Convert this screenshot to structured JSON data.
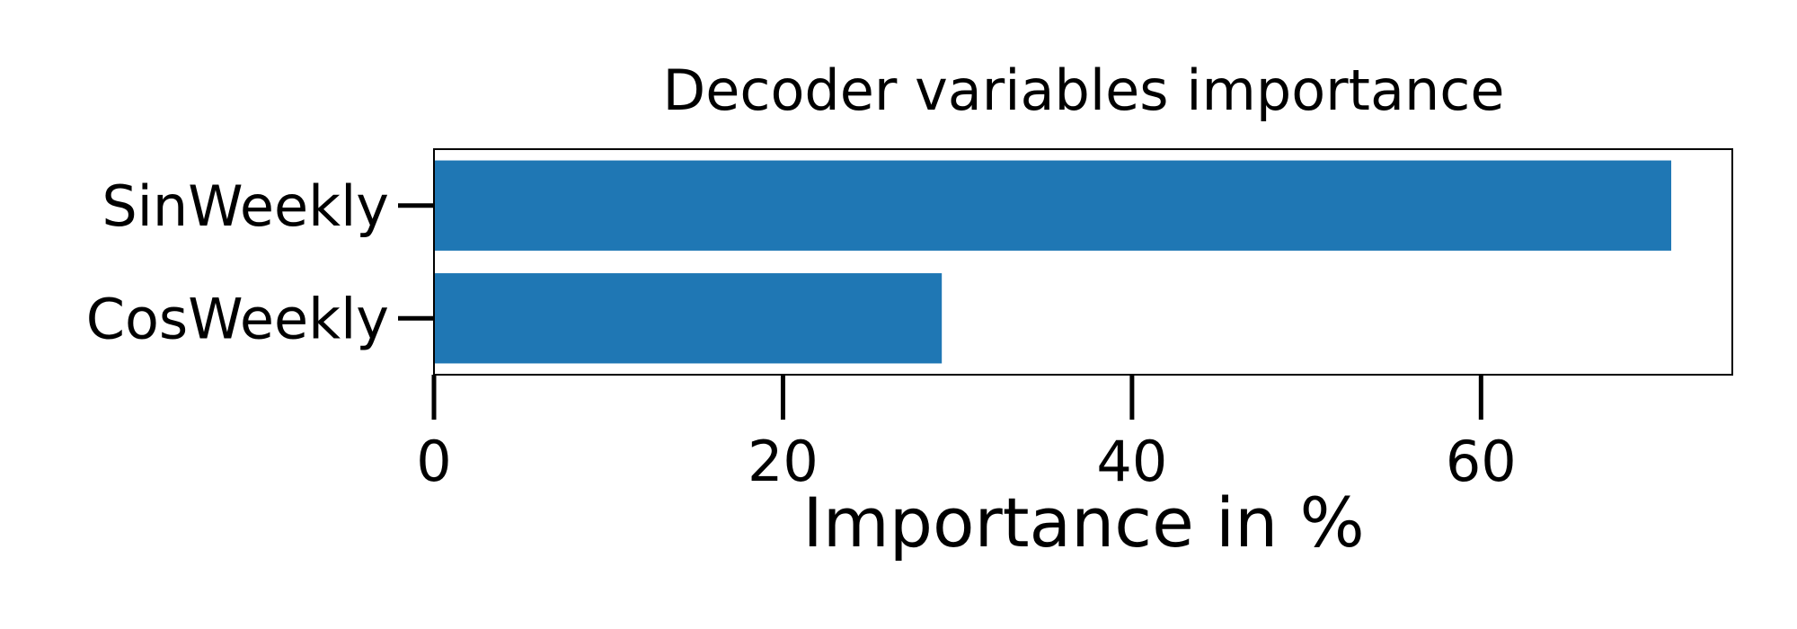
{
  "chart_data": {
    "type": "bar",
    "orientation": "horizontal",
    "title": "Decoder variables importance",
    "xlabel": "Importance in %",
    "ylabel": "",
    "categories": [
      "SinWeekly",
      "CosWeekly"
    ],
    "values": [
      70.9,
      29.1
    ],
    "xlim": [
      0,
      74.4
    ],
    "xticks": [
      "0",
      "20",
      "40",
      "60"
    ],
    "grid": false,
    "legend": "none",
    "bar_color": "#1f77b4"
  }
}
